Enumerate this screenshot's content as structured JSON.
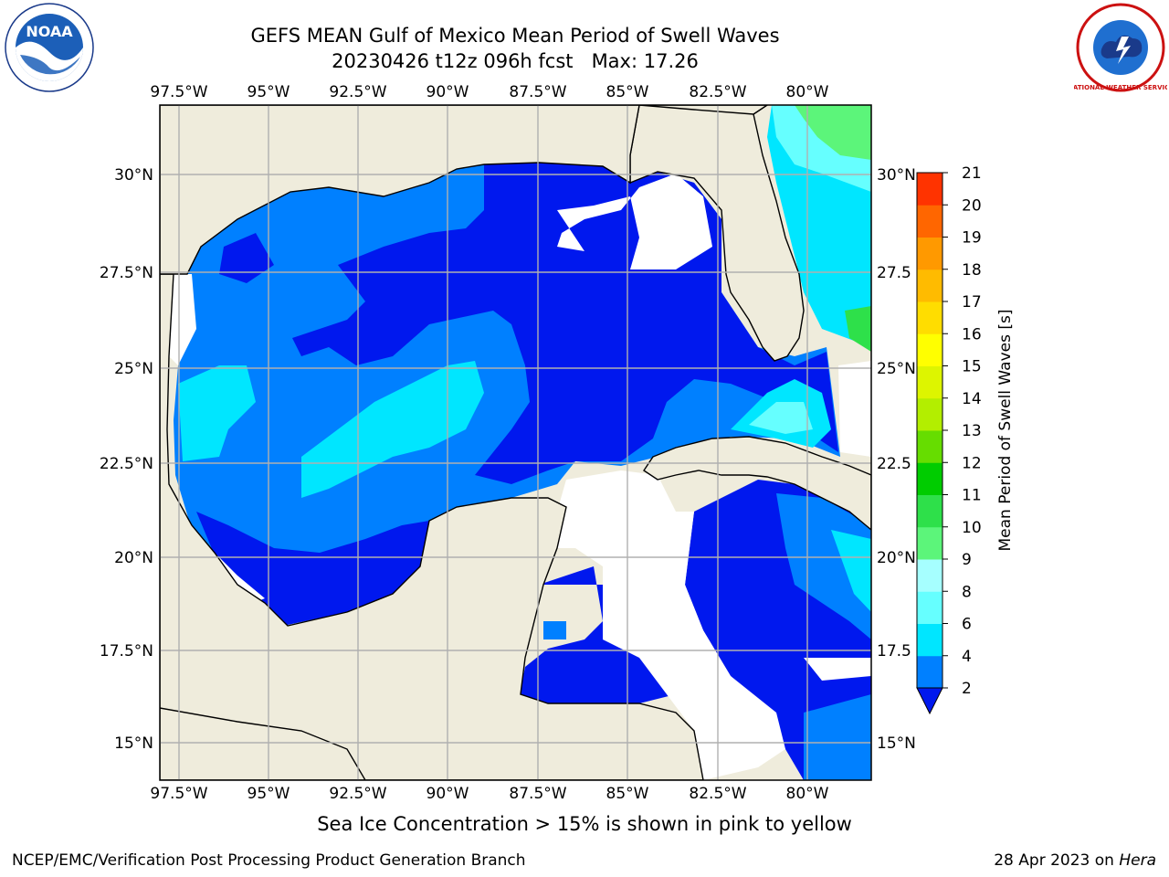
{
  "title": {
    "line1": "GEFS MEAN Gulf of Mexico Mean Period of Swell Waves",
    "run": "20230426 t12z 096h fcst",
    "max_text": "Max: 17.26"
  },
  "map": {
    "lon_labels": [
      "97.5°W",
      "95°W",
      "92.5°W",
      "90°W",
      "87.5°W",
      "85°W",
      "82.5°W",
      "80°W"
    ],
    "lat_labels_left": [
      "30°N",
      "27.5°N",
      "25°N",
      "22.5°N",
      "20°N",
      "17.5°N",
      "15°N"
    ],
    "lat_labels_right": [
      "30°N",
      "27.5",
      "25°N",
      "22.5",
      "20°N",
      "17.5",
      "15°N"
    ],
    "colors": {
      "land": "#efecdc",
      "no_data": "#ffffff",
      "grid": "#b0b0b0"
    }
  },
  "colorbar": {
    "label": "Mean Period of Swell Waves [s]",
    "tick_labels": [
      "2",
      "4",
      "6",
      "8",
      "9",
      "10",
      "11",
      "12",
      "13",
      "14",
      "15",
      "16",
      "17",
      "18",
      "19",
      "20",
      "21"
    ],
    "bin_colors": [
      "#0033ff",
      "#0080ff",
      "#00e6ff",
      "#66ffff",
      "#a6ffff",
      "#5cf57a",
      "#2ee04a",
      "#00cc00",
      "#66dd00",
      "#b3ee00",
      "#ddf500",
      "#ffff00",
      "#ffdd00",
      "#ffbb00",
      "#ff9900",
      "#ff6600",
      "#ff3300",
      "#ff0000"
    ],
    "extend_color": "#0018ee"
  },
  "note": "Sea Ice Concentration > 15% is shown in pink to yellow",
  "footer": {
    "left": "NCEP/EMC/Verification Post Processing Product Generation Branch",
    "date": "28 Apr 2023 on",
    "machine": "Hera"
  },
  "logos": {
    "noaa_text": "NOAA",
    "nws_text": "NATIONAL WEATHER SERVICE"
  }
}
